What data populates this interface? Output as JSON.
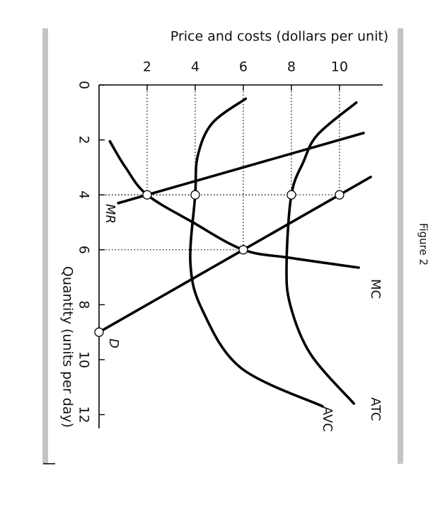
{
  "figure_label": "Figure 2",
  "chart_data": {
    "type": "line",
    "ylabel": "Price and costs (dollars per unit)",
    "xlabel": "Quantity (units per day)",
    "xlim": [
      0,
      12.5
    ],
    "ylim": [
      0,
      11.8
    ],
    "xticks": [
      0,
      2,
      4,
      6,
      8,
      10,
      12
    ],
    "yticks": [
      2,
      4,
      6,
      8,
      10
    ],
    "series": [
      {
        "name": "MC",
        "color": "#000000",
        "x": [
          2.05,
          3,
          4,
          5,
          6,
          6.3,
          6.65
        ],
        "values": [
          0.45,
          1.1,
          2,
          3.9,
          6,
          8,
          10.8
        ]
      },
      {
        "name": "ATC",
        "color": "#000000",
        "x": [
          0.64,
          1.8,
          2.8,
          4,
          6.5,
          8,
          9.8,
          11.6
        ],
        "values": [
          10.7,
          9.1,
          8.5,
          8,
          7.8,
          7.95,
          8.8,
          10.6
        ]
      },
      {
        "name": "AVC",
        "color": "#000000",
        "x": [
          0.5,
          1.4,
          2.6,
          4,
          6.5,
          8.2,
          10.3,
          11.7
        ],
        "values": [
          6.1,
          4.7,
          4.1,
          4,
          3.8,
          4.3,
          5.9,
          9.3
        ]
      },
      {
        "name": "D",
        "color": "#000000",
        "x": [
          3.35,
          9
        ],
        "values": [
          11.3,
          0
        ]
      },
      {
        "name": "MR",
        "color": "#000000",
        "x": [
          1.75,
          4.3
        ],
        "values": [
          11,
          0.8
        ]
      }
    ],
    "points": {
      "x": [
        4,
        4,
        4,
        4,
        6,
        9
      ],
      "values": [
        2,
        4,
        8,
        10,
        6,
        0
      ]
    }
  }
}
